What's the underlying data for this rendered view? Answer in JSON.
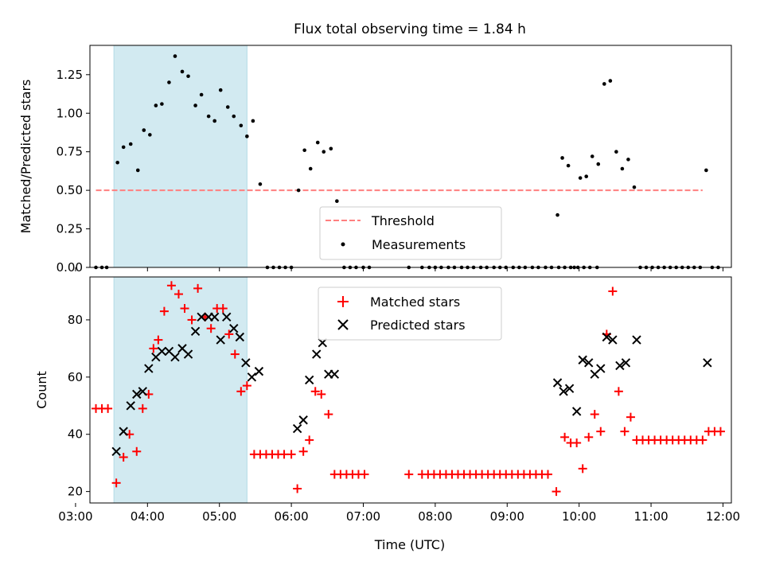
{
  "title": "Flux total observing time = 1.84 h",
  "colors": {
    "threshold": "#ff7f7f",
    "measurements": "#000000",
    "matched": "#ff0000",
    "predicted": "#000000",
    "highlight": "#add8e6"
  },
  "chart_data": [
    {
      "type": "scatter",
      "panel": "top",
      "title": "Flux total observing time = 1.84 h",
      "xlabel": "",
      "ylabel": "Matched/Predicted stars",
      "x_unit": "time_utc",
      "xlim": [
        "03:12",
        "12:07"
      ],
      "ylim": [
        0,
        1.44
      ],
      "yticks": [
        "0.00",
        "0.25",
        "0.50",
        "0.75",
        "1.00",
        "1.25"
      ],
      "xticks": [
        "03:00",
        "04:00",
        "05:00",
        "06:00",
        "07:00",
        "08:00",
        "09:00",
        "10:00",
        "11:00",
        "12:00"
      ],
      "highlight_span": [
        "03:32",
        "05:23"
      ],
      "legend": {
        "placement": "lower center",
        "entries": [
          "Threshold",
          "Measurements"
        ]
      },
      "threshold": {
        "name": "Threshold",
        "y": 0.5,
        "x": [
          "03:17",
          "11:43"
        ],
        "style": "dashed"
      },
      "series": [
        {
          "name": "Measurements",
          "marker": "dot",
          "points": [
            [
              "03:17",
              0
            ],
            [
              "03:22",
              0
            ],
            [
              "03:26",
              0
            ],
            [
              "03:35",
              0.68
            ],
            [
              "03:40",
              0.78
            ],
            [
              "03:46",
              0.8
            ],
            [
              "03:52",
              0.63
            ],
            [
              "03:57",
              0.89
            ],
            [
              "04:02",
              0.86
            ],
            [
              "04:07",
              1.05
            ],
            [
              "04:12",
              1.06
            ],
            [
              "04:18",
              1.2
            ],
            [
              "04:23",
              1.37
            ],
            [
              "04:29",
              1.27
            ],
            [
              "04:34",
              1.24
            ],
            [
              "04:40",
              1.05
            ],
            [
              "04:45",
              1.12
            ],
            [
              "04:51",
              0.98
            ],
            [
              "04:56",
              0.95
            ],
            [
              "05:01",
              1.15
            ],
            [
              "05:07",
              1.04
            ],
            [
              "05:12",
              0.98
            ],
            [
              "05:18",
              0.92
            ],
            [
              "05:23",
              0.85
            ],
            [
              "05:28",
              0.95
            ],
            [
              "05:34",
              0.54
            ],
            [
              "05:40",
              0
            ],
            [
              "05:45",
              0
            ],
            [
              "05:50",
              0
            ],
            [
              "05:55",
              0
            ],
            [
              "06:00",
              0
            ],
            [
              "06:06",
              0.5
            ],
            [
              "06:11",
              0.76
            ],
            [
              "06:16",
              0.64
            ],
            [
              "06:22",
              0.81
            ],
            [
              "06:27",
              0.75
            ],
            [
              "06:33",
              0.77
            ],
            [
              "06:38",
              0.43
            ],
            [
              "06:44",
              0
            ],
            [
              "06:49",
              0
            ],
            [
              "06:54",
              0
            ],
            [
              "07:00",
              0
            ],
            [
              "07:05",
              0
            ],
            [
              "07:38",
              0
            ],
            [
              "07:49",
              0
            ],
            [
              "07:55",
              0
            ],
            [
              "08:00",
              0
            ],
            [
              "08:05",
              0
            ],
            [
              "08:11",
              0
            ],
            [
              "08:16",
              0
            ],
            [
              "08:22",
              0
            ],
            [
              "08:27",
              0
            ],
            [
              "08:32",
              0
            ],
            [
              "08:38",
              0
            ],
            [
              "08:43",
              0
            ],
            [
              "08:49",
              0
            ],
            [
              "08:54",
              0
            ],
            [
              "08:59",
              0
            ],
            [
              "09:05",
              0
            ],
            [
              "09:10",
              0
            ],
            [
              "09:15",
              0
            ],
            [
              "09:21",
              0
            ],
            [
              "09:26",
              0
            ],
            [
              "09:32",
              0
            ],
            [
              "09:37",
              0
            ],
            [
              "09:43",
              0
            ],
            [
              "09:48",
              0
            ],
            [
              "09:53",
              0
            ],
            [
              "09:59",
              0
            ],
            [
              "10:04",
              0
            ],
            [
              "10:09",
              0
            ],
            [
              "10:15",
              0
            ],
            [
              "09:42",
              0.34
            ],
            [
              "09:46",
              0.71
            ],
            [
              "09:51",
              0.66
            ],
            [
              "09:56",
              0
            ],
            [
              "10:01",
              0.58
            ],
            [
              "10:06",
              0.59
            ],
            [
              "10:11",
              0.72
            ],
            [
              "10:16",
              0.67
            ],
            [
              "10:21",
              1.19
            ],
            [
              "10:26",
              1.21
            ],
            [
              "10:31",
              0.75
            ],
            [
              "10:36",
              0.64
            ],
            [
              "10:41",
              0.7
            ],
            [
              "10:46",
              0.52
            ],
            [
              "10:51",
              0
            ],
            [
              "10:56",
              0
            ],
            [
              "11:01",
              0
            ],
            [
              "11:06",
              0
            ],
            [
              "11:11",
              0
            ],
            [
              "11:16",
              0
            ],
            [
              "11:21",
              0
            ],
            [
              "11:26",
              0
            ],
            [
              "11:31",
              0
            ],
            [
              "11:36",
              0
            ],
            [
              "11:41",
              0
            ],
            [
              "11:46",
              0.63
            ],
            [
              "11:51",
              0
            ],
            [
              "11:56",
              0
            ]
          ]
        }
      ]
    },
    {
      "type": "scatter",
      "panel": "bottom",
      "title": "",
      "xlabel": "Time (UTC)",
      "ylabel": "Count",
      "x_unit": "time_utc",
      "xlim": [
        "03:12",
        "12:07"
      ],
      "ylim": [
        16,
        95
      ],
      "yticks": [
        "20",
        "40",
        "60",
        "80"
      ],
      "xticks": [
        "03:00",
        "04:00",
        "05:00",
        "06:00",
        "07:00",
        "08:00",
        "09:00",
        "10:00",
        "11:00",
        "12:00"
      ],
      "highlight_span": [
        "03:32",
        "05:23"
      ],
      "legend": {
        "placement": "upper center",
        "entries": [
          "Matched stars",
          "Predicted stars"
        ]
      },
      "series": [
        {
          "name": "Matched stars",
          "marker": "plus",
          "points": [
            [
              "03:17",
              49
            ],
            [
              "03:22",
              49
            ],
            [
              "03:27",
              49
            ],
            [
              "03:34",
              23
            ],
            [
              "03:40",
              32
            ],
            [
              "03:45",
              40
            ],
            [
              "03:51",
              34
            ],
            [
              "03:56",
              49
            ],
            [
              "04:01",
              54
            ],
            [
              "04:05",
              70
            ],
            [
              "04:09",
              73
            ],
            [
              "04:14",
              83
            ],
            [
              "04:20",
              92
            ],
            [
              "04:26",
              89
            ],
            [
              "04:31",
              84
            ],
            [
              "04:37",
              80
            ],
            [
              "04:42",
              91
            ],
            [
              "04:48",
              81
            ],
            [
              "04:53",
              77
            ],
            [
              "04:58",
              84
            ],
            [
              "05:03",
              84
            ],
            [
              "05:08",
              75
            ],
            [
              "05:13",
              68
            ],
            [
              "05:18",
              55
            ],
            [
              "05:23",
              57
            ],
            [
              "05:29",
              33
            ],
            [
              "05:34",
              33
            ],
            [
              "05:39",
              33
            ],
            [
              "05:44",
              33
            ],
            [
              "05:49",
              33
            ],
            [
              "05:54",
              33
            ],
            [
              "06:00",
              33
            ],
            [
              "06:05",
              21
            ],
            [
              "06:10",
              34
            ],
            [
              "06:15",
              38
            ],
            [
              "06:20",
              55
            ],
            [
              "06:25",
              54
            ],
            [
              "06:31",
              47
            ],
            [
              "06:36",
              26
            ],
            [
              "06:41",
              26
            ],
            [
              "06:46",
              26
            ],
            [
              "06:51",
              26
            ],
            [
              "06:56",
              26
            ],
            [
              "07:01",
              26
            ],
            [
              "07:38",
              26
            ],
            [
              "07:49",
              26
            ],
            [
              "07:54",
              26
            ],
            [
              "07:59",
              26
            ],
            [
              "08:04",
              26
            ],
            [
              "08:09",
              26
            ],
            [
              "08:14",
              26
            ],
            [
              "08:19",
              26
            ],
            [
              "08:24",
              26
            ],
            [
              "08:29",
              26
            ],
            [
              "08:34",
              26
            ],
            [
              "08:39",
              26
            ],
            [
              "08:44",
              26
            ],
            [
              "08:49",
              26
            ],
            [
              "08:54",
              26
            ],
            [
              "08:59",
              26
            ],
            [
              "09:04",
              26
            ],
            [
              "09:09",
              26
            ],
            [
              "09:14",
              26
            ],
            [
              "09:19",
              26
            ],
            [
              "09:24",
              26
            ],
            [
              "09:29",
              26
            ],
            [
              "09:34",
              26
            ],
            [
              "09:41",
              20
            ],
            [
              "09:48",
              39
            ],
            [
              "09:53",
              37
            ],
            [
              "09:58",
              37
            ],
            [
              "10:03",
              28
            ],
            [
              "10:08",
              39
            ],
            [
              "10:13",
              47
            ],
            [
              "10:18",
              41
            ],
            [
              "10:23",
              75
            ],
            [
              "10:28",
              90
            ],
            [
              "10:33",
              55
            ],
            [
              "10:38",
              41
            ],
            [
              "10:43",
              46
            ],
            [
              "10:48",
              38
            ],
            [
              "10:53",
              38
            ],
            [
              "10:58",
              38
            ],
            [
              "11:03",
              38
            ],
            [
              "11:08",
              38
            ],
            [
              "11:13",
              38
            ],
            [
              "11:18",
              38
            ],
            [
              "11:23",
              38
            ],
            [
              "11:28",
              38
            ],
            [
              "11:33",
              38
            ],
            [
              "11:38",
              38
            ],
            [
              "11:43",
              38
            ],
            [
              "11:48",
              41
            ],
            [
              "11:53",
              41
            ],
            [
              "11:58",
              41
            ]
          ]
        },
        {
          "name": "Predicted stars",
          "marker": "x",
          "points": [
            [
              "03:34",
              34
            ],
            [
              "03:40",
              41
            ],
            [
              "03:46",
              50
            ],
            [
              "03:51",
              54
            ],
            [
              "03:56",
              55
            ],
            [
              "04:01",
              63
            ],
            [
              "04:07",
              67
            ],
            [
              "04:12",
              69
            ],
            [
              "04:18",
              69
            ],
            [
              "04:23",
              67
            ],
            [
              "04:29",
              70
            ],
            [
              "04:34",
              68
            ],
            [
              "04:40",
              76
            ],
            [
              "04:45",
              81
            ],
            [
              "04:51",
              81
            ],
            [
              "04:56",
              81
            ],
            [
              "05:01",
              73
            ],
            [
              "05:06",
              81
            ],
            [
              "05:12",
              77
            ],
            [
              "05:17",
              74
            ],
            [
              "05:22",
              65
            ],
            [
              "05:27",
              60
            ],
            [
              "05:33",
              62
            ],
            [
              "06:05",
              42
            ],
            [
              "06:10",
              45
            ],
            [
              "06:15",
              59
            ],
            [
              "06:21",
              68
            ],
            [
              "06:26",
              72
            ],
            [
              "06:31",
              61
            ],
            [
              "06:36",
              61
            ],
            [
              "09:42",
              58
            ],
            [
              "09:47",
              55
            ],
            [
              "09:52",
              56
            ],
            [
              "09:58",
              48
            ],
            [
              "10:03",
              66
            ],
            [
              "10:08",
              65
            ],
            [
              "10:13",
              61
            ],
            [
              "10:18",
              63
            ],
            [
              "10:23",
              74
            ],
            [
              "10:28",
              73
            ],
            [
              "10:34",
              64
            ],
            [
              "10:39",
              65
            ],
            [
              "10:48",
              73
            ],
            [
              "11:47",
              65
            ]
          ]
        }
      ]
    }
  ]
}
